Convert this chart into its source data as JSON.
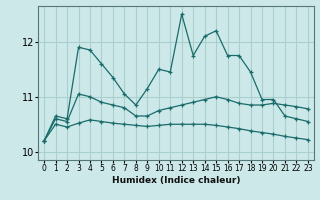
{
  "xlabel": "Humidex (Indice chaleur)",
  "bg_color": "#cce8e8",
  "grid_color": "#aacfcf",
  "line_color": "#1a6b6b",
  "xlim": [
    -0.5,
    23.5
  ],
  "ylim": [
    9.85,
    12.65
  ],
  "yticks": [
    10,
    11,
    12
  ],
  "xticks": [
    0,
    1,
    2,
    3,
    4,
    5,
    6,
    7,
    8,
    9,
    10,
    11,
    12,
    13,
    14,
    15,
    16,
    17,
    18,
    19,
    20,
    21,
    22,
    23
  ],
  "series": [
    [
      10.2,
      10.65,
      10.6,
      11.9,
      11.85,
      11.6,
      11.35,
      11.05,
      10.85,
      11.15,
      11.5,
      11.45,
      12.5,
      11.75,
      12.1,
      12.2,
      11.75,
      11.75,
      11.45,
      10.95,
      10.95,
      10.65,
      10.6,
      10.55
    ],
    [
      10.2,
      10.6,
      10.55,
      11.05,
      11.0,
      10.9,
      10.85,
      10.8,
      10.65,
      10.65,
      10.75,
      10.8,
      10.85,
      10.9,
      10.95,
      11.0,
      10.95,
      10.88,
      10.85,
      10.85,
      10.88,
      10.85,
      10.82,
      10.78
    ],
    [
      10.2,
      10.5,
      10.45,
      10.52,
      10.58,
      10.55,
      10.52,
      10.5,
      10.48,
      10.46,
      10.48,
      10.5,
      10.5,
      10.5,
      10.5,
      10.48,
      10.45,
      10.42,
      10.38,
      10.35,
      10.32,
      10.28,
      10.25,
      10.22
    ]
  ]
}
